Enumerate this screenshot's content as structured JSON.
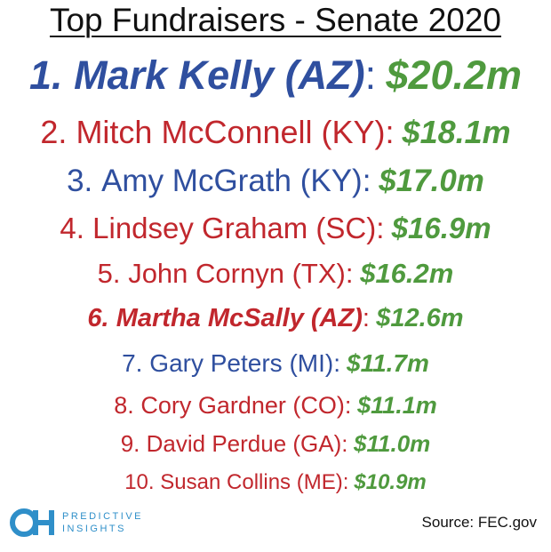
{
  "header": {
    "title": "Top Fundraisers - Senate 2020"
  },
  "list": {
    "rows": [
      {
        "rank": "1.",
        "name": "Mark Kelly (AZ)",
        "colon": ":",
        "amount": "$20.2m",
        "party": "dem"
      },
      {
        "rank": "2.",
        "name": "Mitch McConnell (KY)",
        "colon": ":",
        "amount": "$18.1m",
        "party": "rep"
      },
      {
        "rank": "3.",
        "name": "Amy McGrath (KY)",
        "colon": ":",
        "amount": "$17.0m",
        "party": "dem"
      },
      {
        "rank": "4.",
        "name": "Lindsey Graham (SC)",
        "colon": ":",
        "amount": "$16.9m",
        "party": "rep"
      },
      {
        "rank": "5.",
        "name": "John Cornyn (TX)",
        "colon": ":",
        "amount": "$16.2m",
        "party": "rep"
      },
      {
        "rank": "6.",
        "name": "Martha McSally (AZ)",
        "colon": ":",
        "amount": "$12.6m",
        "party": "rep"
      },
      {
        "rank": "7.",
        "name": "Gary Peters (MI)",
        "colon": ":",
        "amount": "$11.7m",
        "party": "dem"
      },
      {
        "rank": "8.",
        "name": "Cory Gardner (CO)",
        "colon": ":",
        "amount": "$11.1m",
        "party": "rep"
      },
      {
        "rank": "9.",
        "name": "David Perdue (GA)",
        "colon": ":",
        "amount": "$11.0m",
        "party": "rep"
      },
      {
        "rank": "10.",
        "name": "Susan Collins (ME)",
        "colon": ":",
        "amount": "$10.9m",
        "party": "rep"
      }
    ]
  },
  "footer": {
    "logo_line1": "PREDICTIVE",
    "logo_line2": "INSIGHTS",
    "source": "Source: FEC.gov"
  }
}
